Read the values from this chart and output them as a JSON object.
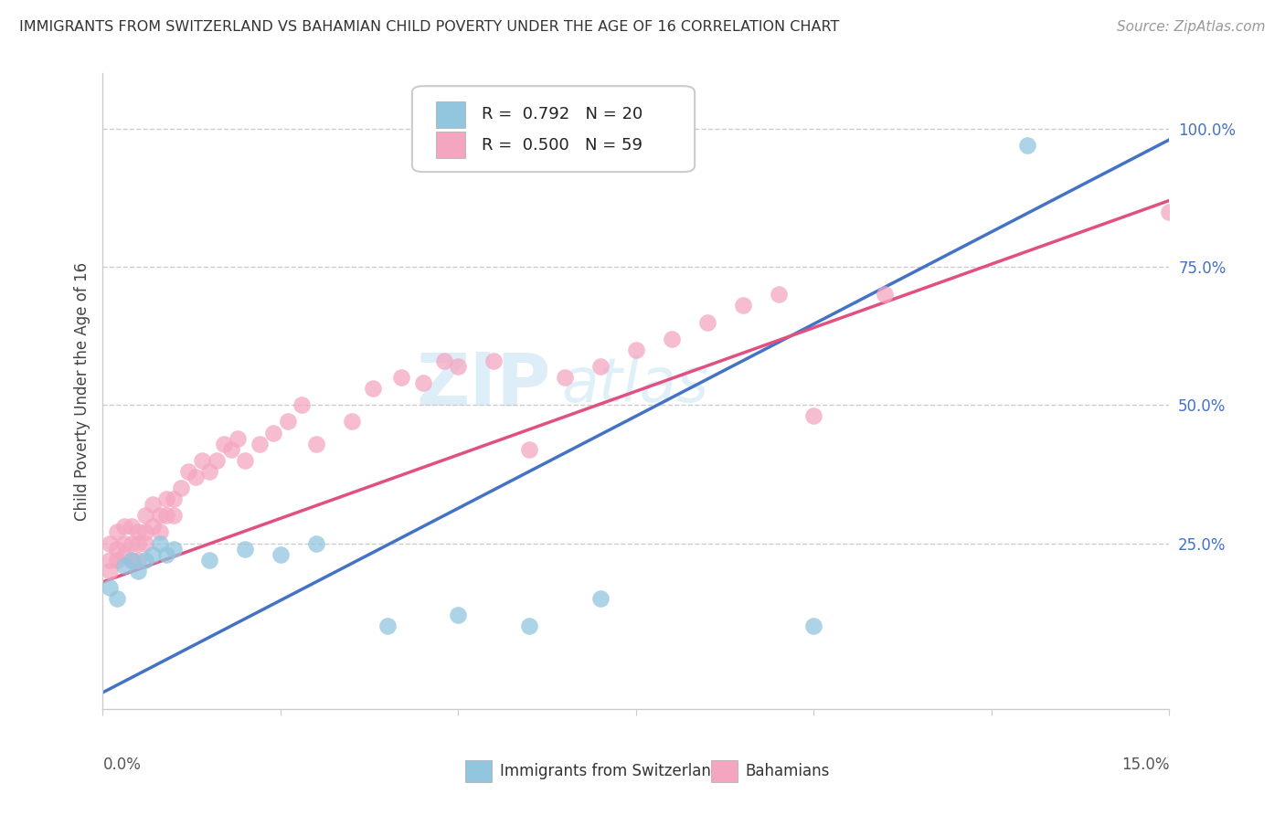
{
  "title": "IMMIGRANTS FROM SWITZERLAND VS BAHAMIAN CHILD POVERTY UNDER THE AGE OF 16 CORRELATION CHART",
  "source": "Source: ZipAtlas.com",
  "ylabel": "Child Poverty Under the Age of 16",
  "right_ytick_vals": [
    0.25,
    0.5,
    0.75,
    1.0
  ],
  "right_ytick_labels": [
    "25.0%",
    "50.0%",
    "75.0%",
    "100.0%"
  ],
  "xlim": [
    0.0,
    0.15
  ],
  "ylim": [
    -0.05,
    1.1
  ],
  "legend_blue_r": "0.792",
  "legend_blue_n": "20",
  "legend_pink_r": "0.500",
  "legend_pink_n": "59",
  "blue_color": "#92c5de",
  "pink_color": "#f4a6c0",
  "blue_line_color": "#4472c4",
  "pink_line_color": "#e05080",
  "watermark_zip": "ZIP",
  "watermark_atlas": "atlas",
  "blue_scatter_x": [
    0.001,
    0.002,
    0.003,
    0.004,
    0.005,
    0.006,
    0.007,
    0.008,
    0.009,
    0.01,
    0.015,
    0.02,
    0.025,
    0.03,
    0.04,
    0.05,
    0.06,
    0.07,
    0.1,
    0.13
  ],
  "blue_scatter_y": [
    0.17,
    0.15,
    0.21,
    0.22,
    0.2,
    0.22,
    0.23,
    0.25,
    0.23,
    0.24,
    0.22,
    0.24,
    0.23,
    0.25,
    0.1,
    0.12,
    0.1,
    0.15,
    0.1,
    0.97
  ],
  "pink_scatter_x": [
    0.001,
    0.001,
    0.001,
    0.002,
    0.002,
    0.002,
    0.003,
    0.003,
    0.003,
    0.004,
    0.004,
    0.004,
    0.005,
    0.005,
    0.005,
    0.006,
    0.006,
    0.006,
    0.007,
    0.007,
    0.008,
    0.008,
    0.009,
    0.009,
    0.01,
    0.01,
    0.011,
    0.012,
    0.013,
    0.014,
    0.015,
    0.016,
    0.017,
    0.018,
    0.019,
    0.02,
    0.022,
    0.024,
    0.026,
    0.028,
    0.03,
    0.035,
    0.038,
    0.042,
    0.045,
    0.048,
    0.05,
    0.055,
    0.06,
    0.065,
    0.07,
    0.075,
    0.08,
    0.085,
    0.09,
    0.095,
    0.1,
    0.11,
    0.15
  ],
  "pink_scatter_y": [
    0.2,
    0.22,
    0.25,
    0.22,
    0.24,
    0.27,
    0.23,
    0.25,
    0.28,
    0.22,
    0.25,
    0.28,
    0.22,
    0.25,
    0.27,
    0.25,
    0.27,
    0.3,
    0.28,
    0.32,
    0.27,
    0.3,
    0.3,
    0.33,
    0.3,
    0.33,
    0.35,
    0.38,
    0.37,
    0.4,
    0.38,
    0.4,
    0.43,
    0.42,
    0.44,
    0.4,
    0.43,
    0.45,
    0.47,
    0.5,
    0.43,
    0.47,
    0.53,
    0.55,
    0.54,
    0.58,
    0.57,
    0.58,
    0.42,
    0.55,
    0.57,
    0.6,
    0.62,
    0.65,
    0.68,
    0.7,
    0.48,
    0.7,
    0.85
  ]
}
